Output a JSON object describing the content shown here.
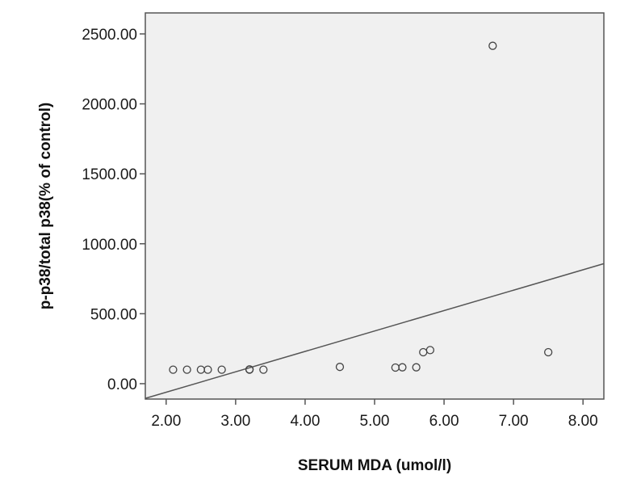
{
  "chart_data": {
    "type": "scatter",
    "xlabel": "SERUM MDA (umol/l)",
    "ylabel": "p-p38/total p38(% of control)",
    "xlim": [
      1.7,
      8.3
    ],
    "ylim": [
      -110,
      2650
    ],
    "x_ticks": [
      2.0,
      3.0,
      4.0,
      5.0,
      6.0,
      7.0,
      8.0
    ],
    "x_tick_labels": [
      "2.00",
      "3.00",
      "4.00",
      "5.00",
      "6.00",
      "7.00",
      "8.00"
    ],
    "y_ticks": [
      0,
      500,
      1000,
      1500,
      2000,
      2500
    ],
    "y_tick_labels": [
      "0.00",
      "500.00",
      "1000.00",
      "1500.00",
      "2000.00",
      "2500.00"
    ],
    "points": [
      {
        "x": 2.1,
        "y": 100
      },
      {
        "x": 2.3,
        "y": 100
      },
      {
        "x": 2.5,
        "y": 100
      },
      {
        "x": 2.6,
        "y": 100
      },
      {
        "x": 2.8,
        "y": 100
      },
      {
        "x": 3.2,
        "y": 100
      },
      {
        "x": 3.2,
        "y": 102
      },
      {
        "x": 3.4,
        "y": 100
      },
      {
        "x": 4.5,
        "y": 120
      },
      {
        "x": 5.3,
        "y": 115
      },
      {
        "x": 5.4,
        "y": 117
      },
      {
        "x": 5.6,
        "y": 117
      },
      {
        "x": 5.7,
        "y": 225
      },
      {
        "x": 5.8,
        "y": 240
      },
      {
        "x": 6.7,
        "y": 2415
      },
      {
        "x": 7.5,
        "y": 225
      }
    ],
    "fit_line": {
      "x": [
        1.7,
        8.3
      ],
      "y": [
        -105,
        858
      ]
    },
    "grid": false,
    "colors": {
      "plot_background": "#f0f0f0",
      "frame": "#555555",
      "marker_stroke": "#444444",
      "fit_line": "#555555"
    }
  }
}
